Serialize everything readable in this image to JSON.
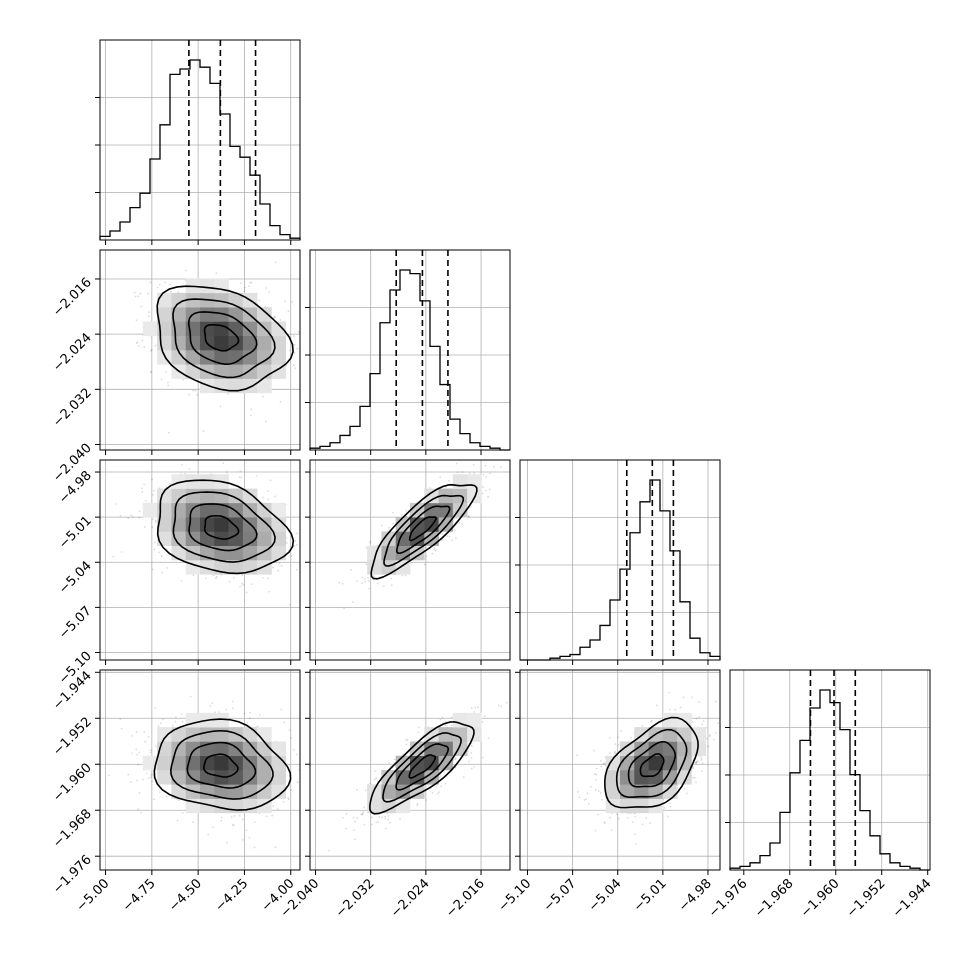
{
  "chart_data": {
    "type": "corner",
    "grid": true,
    "parameters": [
      {
        "range": [
          -5.03,
          -3.95
        ],
        "ticks": [
          -5.0,
          -4.75,
          -4.5,
          -4.25,
          -4.0
        ],
        "tick_labels": [
          "−5.00",
          "−4.75",
          "−4.50",
          "−4.25",
          "−4.00"
        ],
        "quantiles": [
          -4.55,
          -4.38,
          -4.19
        ],
        "hist_counts": [
          2,
          5,
          10,
          18,
          26,
          45,
          64,
          92,
          95,
          100,
          96,
          87,
          70,
          52,
          46,
          36,
          20,
          8,
          3,
          1
        ]
      },
      {
        "range": [
          -2.0408,
          -2.0118
        ],
        "ticks": [
          -2.04,
          -2.032,
          -2.024,
          -2.016
        ],
        "tick_labels": [
          "−2.040",
          "−2.032",
          "−2.024",
          "−2.016"
        ],
        "quantiles": [
          -2.0283,
          -2.0245,
          -2.0208
        ],
        "hist_counts": [
          1,
          2,
          4,
          8,
          13,
          24,
          42,
          70,
          88,
          99,
          97,
          82,
          57,
          36,
          17,
          9,
          4,
          2,
          1,
          0
        ]
      },
      {
        "range": [
          -5.105,
          -4.972
        ],
        "ticks": [
          -5.1,
          -5.07,
          -5.04,
          -5.01,
          -4.98
        ],
        "tick_labels": [
          "−5.10",
          "−5.07",
          "−5.04",
          "−5.01",
          "−4.98"
        ],
        "quantiles": [
          -5.034,
          -5.017,
          -5.003
        ],
        "hist_counts": [
          0,
          0,
          0,
          1,
          2,
          3,
          7,
          11,
          19,
          33,
          50,
          70,
          87,
          99,
          82,
          60,
          32,
          12,
          4,
          2
        ]
      },
      {
        "range": [
          -1.9784,
          -1.9436
        ],
        "ticks": [
          -1.976,
          -1.968,
          -1.96,
          -1.952,
          -1.944
        ],
        "tick_labels": [
          "−1.976",
          "−1.968",
          "−1.960",
          "−1.952",
          "−1.944"
        ],
        "quantiles": [
          -1.9644,
          -1.9603,
          -1.9566
        ],
        "hist_counts": [
          1,
          2,
          4,
          8,
          15,
          32,
          54,
          72,
          90,
          100,
          93,
          78,
          53,
          33,
          19,
          9,
          4,
          2,
          1,
          0
        ]
      }
    ],
    "sample_correlations": {
      "1,0": -0.25,
      "2,0": -0.25,
      "2,1": 0.82,
      "3,0": -0.15,
      "3,1": 0.8,
      "3,2": 0.45
    }
  }
}
